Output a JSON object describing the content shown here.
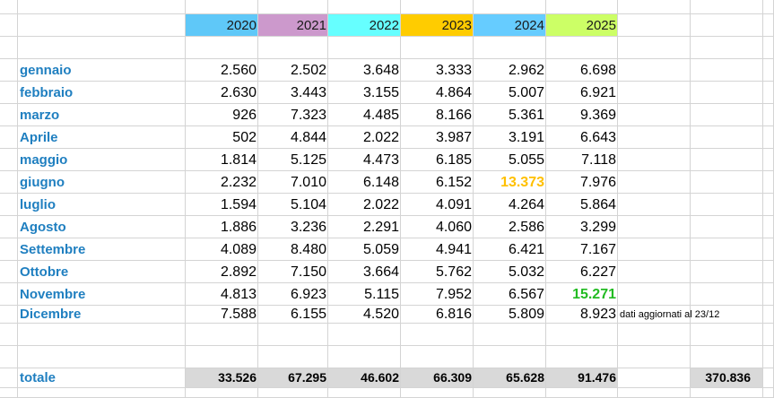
{
  "header": {
    "years": [
      "2020",
      "2021",
      "2022",
      "2023",
      "2024",
      "2025"
    ]
  },
  "table": {
    "rows": [
      {
        "label": "gennaio",
        "values": [
          "2.560",
          "2.502",
          "3.648",
          "3.333",
          "2.962",
          "6.698"
        ]
      },
      {
        "label": "febbraio",
        "values": [
          "2.630",
          "3.443",
          "3.155",
          "4.864",
          "5.007",
          "6.921"
        ]
      },
      {
        "label": "marzo",
        "values": [
          "926",
          "7.323",
          "4.485",
          "8.166",
          "5.361",
          "9.369"
        ]
      },
      {
        "label": "Aprile",
        "values": [
          "502",
          "4.844",
          "2.022",
          "3.987",
          "3.191",
          "6.643"
        ]
      },
      {
        "label": "maggio",
        "values": [
          "1.814",
          "5.125",
          "4.473",
          "6.185",
          "5.055",
          "7.118"
        ]
      },
      {
        "label": "giugno",
        "values": [
          "2.232",
          "7.010",
          "6.148",
          "6.152",
          "13.373",
          "7.976"
        ]
      },
      {
        "label": "luglio",
        "values": [
          "1.594",
          "5.104",
          "2.022",
          "4.091",
          "4.264",
          "5.864"
        ]
      },
      {
        "label": "Agosto",
        "values": [
          "1.886",
          "3.236",
          "2.291",
          "4.060",
          "2.586",
          "3.299"
        ]
      },
      {
        "label": "Settembre",
        "values": [
          "4.089",
          "8.480",
          "5.059",
          "4.941",
          "6.421",
          "7.167"
        ]
      },
      {
        "label": "Ottobre",
        "values": [
          "2.892",
          "7.150",
          "3.664",
          "5.762",
          "5.032",
          "6.227"
        ]
      },
      {
        "label": "Novembre",
        "values": [
          "4.813",
          "6.923",
          "5.115",
          "7.952",
          "6.567",
          "15.271"
        ]
      },
      {
        "label": "Dicembre",
        "values": [
          "7.588",
          "6.155",
          "4.520",
          "6.816",
          "5.809",
          "8.923"
        ]
      }
    ]
  },
  "note": "dati aggiornati al 23/12",
  "totals": {
    "label": "totale",
    "values": [
      "33.526",
      "67.295",
      "46.602",
      "66.309",
      "65.628",
      "91.476"
    ],
    "grand_total": "370.836"
  }
}
